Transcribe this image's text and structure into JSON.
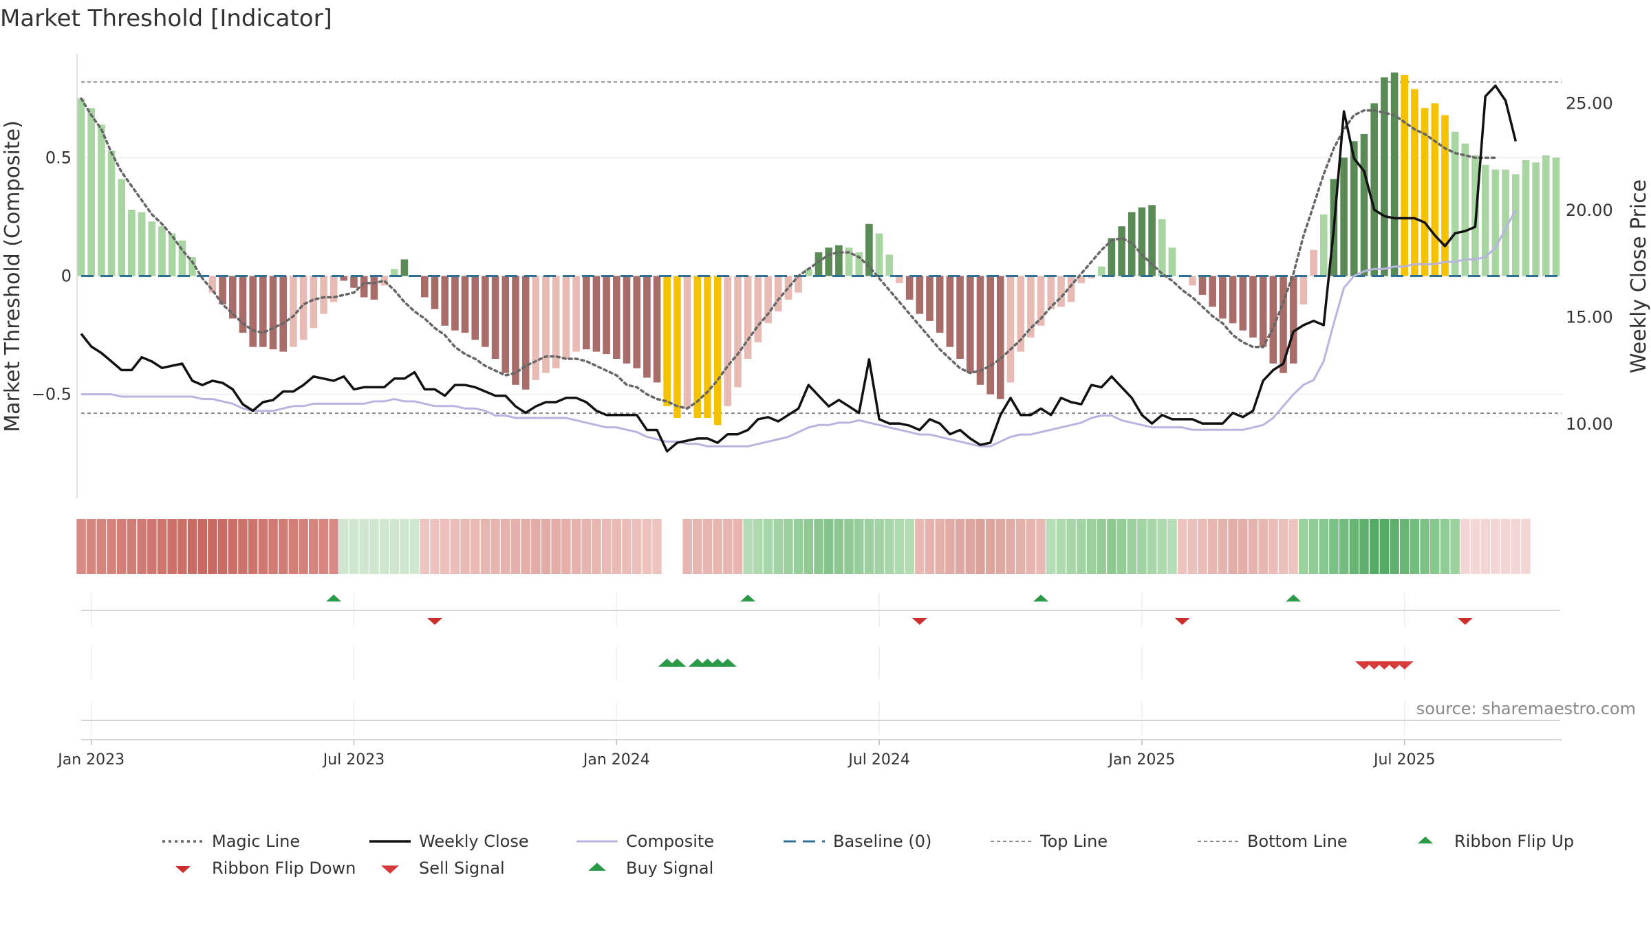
{
  "title": "Market Threshold [Indicator]",
  "source": "source: sharemaestro.com",
  "colors": {
    "pos_light": "#a8d5a2",
    "pos_dark": "#5a8a55",
    "neg_light": "#e8bab4",
    "neg_dark": "#a86d69",
    "extreme": "#f5c200",
    "magic": "#666666",
    "close": "#111111",
    "composite": "#b8b4e0",
    "baseline": "#2e6f96",
    "guide": "#888888",
    "buy": "#2a9a49",
    "sell": "#d63a3a",
    "flip_down": "#cc2d2d"
  },
  "chart_data": {
    "type": "bar+line",
    "title": "Market Threshold [Indicator]",
    "y_left_label": "Market Threshold (Composite)",
    "y_right_label": "Weekly Close Price",
    "y_left_ticks": [
      "0.5",
      "0",
      "−0.5"
    ],
    "y_left_tick_values": [
      0.5,
      0,
      -0.5
    ],
    "y_right_ticks": [
      "25.00",
      "20.00",
      "15.00",
      "10.00"
    ],
    "y_right_tick_values": [
      25,
      20,
      15,
      10
    ],
    "ylim_left": [
      -0.94,
      0.94
    ],
    "ylim_right": [
      6.5,
      27.3
    ],
    "top_line": 0.82,
    "bottom_line": -0.58,
    "x_ticks": [
      "Jan 2023",
      "Jul 2023",
      "Jan 2024",
      "Jul 2024",
      "Jan 2025",
      "Jul 2025"
    ],
    "x_tick_weeks": [
      1,
      27,
      53,
      79,
      105,
      131
    ],
    "composite_bars": [
      0.75,
      0.71,
      0.64,
      0.53,
      0.41,
      0.28,
      0.27,
      0.23,
      0.21,
      0.18,
      0.15,
      0.08,
      0,
      -0.07,
      -0.12,
      -0.18,
      -0.24,
      -0.3,
      -0.3,
      -0.31,
      -0.32,
      -0.3,
      -0.27,
      -0.22,
      -0.16,
      -0.11,
      -0.02,
      -0.05,
      -0.09,
      -0.1,
      -0.04,
      0.03,
      0.07,
      0,
      -0.09,
      -0.14,
      -0.21,
      -0.23,
      -0.24,
      -0.27,
      -0.3,
      -0.35,
      -0.41,
      -0.46,
      -0.48,
      -0.44,
      -0.41,
      -0.39,
      -0.35,
      -0.32,
      -0.31,
      -0.32,
      -0.33,
      -0.35,
      -0.37,
      -0.39,
      -0.43,
      -0.45,
      -0.55,
      -0.6,
      -0.56,
      -0.6,
      -0.6,
      -0.63,
      -0.55,
      -0.47,
      -0.35,
      -0.28,
      -0.2,
      -0.15,
      -0.1,
      -0.07,
      0.03,
      0.1,
      0.12,
      0.13,
      0.12,
      0.1,
      0.22,
      0.18,
      0.09,
      -0.03,
      -0.1,
      -0.16,
      -0.19,
      -0.24,
      -0.3,
      -0.35,
      -0.41,
      -0.46,
      -0.5,
      -0.52,
      -0.45,
      -0.32,
      -0.26,
      -0.21,
      -0.14,
      -0.13,
      -0.11,
      -0.03,
      -0.01,
      0.04,
      0.16,
      0.21,
      0.27,
      0.29,
      0.3,
      0.24,
      0.12,
      0,
      -0.04,
      -0.08,
      -0.13,
      -0.18,
      -0.2,
      -0.23,
      -0.26,
      -0.3,
      -0.37,
      -0.41,
      -0.37,
      -0.12,
      0.11,
      0.26,
      0.41,
      0.5,
      0.57,
      0.6,
      0.73,
      0.84,
      0.86,
      0.85,
      0.79,
      0.71,
      0.73,
      0.68,
      0.61,
      0.56,
      0.51,
      0.47,
      0.45,
      0.45,
      0.43,
      0.49,
      0.48,
      0.51,
      0.5
    ],
    "bar_color_keys": [
      "pos_light",
      "pos_light",
      "pos_light",
      "pos_light",
      "pos_light",
      "pos_light",
      "pos_light",
      "pos_light",
      "pos_light",
      "pos_light",
      "pos_light",
      "pos_light",
      "neg_light",
      "neg_light",
      "neg_dark",
      "neg_dark",
      "neg_dark",
      "neg_dark",
      "neg_dark",
      "neg_dark",
      "neg_dark",
      "neg_light",
      "neg_light",
      "neg_light",
      "neg_light",
      "neg_light",
      "neg_dark",
      "neg_dark",
      "neg_dark",
      "neg_dark",
      "neg_light",
      "pos_light",
      "pos_dark",
      "neg_light",
      "neg_dark",
      "neg_dark",
      "neg_dark",
      "neg_dark",
      "neg_dark",
      "neg_dark",
      "neg_dark",
      "neg_dark",
      "neg_dark",
      "neg_dark",
      "neg_dark",
      "neg_light",
      "neg_light",
      "neg_light",
      "neg_light",
      "neg_light",
      "neg_dark",
      "neg_dark",
      "neg_dark",
      "neg_dark",
      "neg_dark",
      "neg_dark",
      "neg_dark",
      "neg_dark",
      "extreme",
      "extreme",
      "neg_light",
      "extreme",
      "extreme",
      "extreme",
      "neg_light",
      "neg_light",
      "neg_light",
      "neg_light",
      "neg_light",
      "neg_light",
      "neg_light",
      "neg_light",
      "pos_light",
      "pos_dark",
      "pos_dark",
      "pos_dark",
      "pos_light",
      "pos_light",
      "pos_dark",
      "pos_light",
      "pos_light",
      "neg_light",
      "neg_dark",
      "neg_dark",
      "neg_dark",
      "neg_dark",
      "neg_dark",
      "neg_dark",
      "neg_dark",
      "neg_dark",
      "neg_dark",
      "neg_dark",
      "neg_light",
      "neg_light",
      "neg_light",
      "neg_light",
      "neg_light",
      "neg_light",
      "neg_light",
      "neg_light",
      "neg_light",
      "pos_light",
      "pos_dark",
      "pos_dark",
      "pos_dark",
      "pos_dark",
      "pos_dark",
      "pos_light",
      "pos_light",
      "neg_light",
      "neg_light",
      "neg_dark",
      "neg_dark",
      "neg_dark",
      "neg_dark",
      "neg_dark",
      "neg_dark",
      "neg_dark",
      "neg_dark",
      "neg_dark",
      "neg_dark",
      "neg_light",
      "neg_light",
      "pos_light",
      "pos_dark",
      "pos_dark",
      "pos_dark",
      "pos_dark",
      "pos_dark",
      "pos_dark",
      "pos_dark",
      "extreme",
      "extreme",
      "extreme",
      "extreme",
      "extreme",
      "pos_light",
      "pos_light",
      "pos_light",
      "pos_light",
      "pos_light",
      "pos_light",
      "pos_light",
      "pos_light",
      "pos_light",
      "pos_light",
      "pos_light",
      "pos_dark",
      "pos_dark",
      "pos_light"
    ],
    "magic_line": [
      0.75,
      0.68,
      0.62,
      0.52,
      0.44,
      0.38,
      0.32,
      0.26,
      0.22,
      0.17,
      0.11,
      0.06,
      -0.01,
      -0.06,
      -0.12,
      -0.16,
      -0.2,
      -0.23,
      -0.24,
      -0.22,
      -0.2,
      -0.17,
      -0.12,
      -0.1,
      -0.09,
      -0.09,
      -0.08,
      -0.07,
      -0.03,
      -0.03,
      -0.02,
      -0.06,
      -0.11,
      -0.15,
      -0.18,
      -0.22,
      -0.25,
      -0.3,
      -0.33,
      -0.35,
      -0.38,
      -0.4,
      -0.42,
      -0.41,
      -0.38,
      -0.36,
      -0.34,
      -0.34,
      -0.35,
      -0.35,
      -0.36,
      -0.38,
      -0.4,
      -0.42,
      -0.46,
      -0.47,
      -0.5,
      -0.52,
      -0.53,
      -0.55,
      -0.56,
      -0.53,
      -0.49,
      -0.44,
      -0.38,
      -0.33,
      -0.27,
      -0.21,
      -0.16,
      -0.1,
      -0.05,
      0,
      0.03,
      0.06,
      0.09,
      0.1,
      0.1,
      0.08,
      0.04,
      -0.01,
      -0.06,
      -0.11,
      -0.16,
      -0.21,
      -0.26,
      -0.31,
      -0.35,
      -0.39,
      -0.41,
      -0.4,
      -0.38,
      -0.35,
      -0.31,
      -0.27,
      -0.22,
      -0.18,
      -0.13,
      -0.09,
      -0.04,
      0.01,
      0.06,
      0.11,
      0.15,
      0.16,
      0.14,
      0.09,
      0.05,
      0.01,
      -0.02,
      -0.06,
      -0.09,
      -0.13,
      -0.17,
      -0.2,
      -0.25,
      -0.28,
      -0.3,
      -0.3,
      -0.22,
      -0.11,
      0.01,
      0.17,
      0.3,
      0.43,
      0.54,
      0.62,
      0.68,
      0.7,
      0.7,
      0.69,
      0.68,
      0.65,
      0.62,
      0.6,
      0.57,
      0.54,
      0.52,
      0.51,
      0.5,
      0.5,
      0.5
    ],
    "weekly_close": [
      14.2,
      13.6,
      13.3,
      12.9,
      12.5,
      12.5,
      13.1,
      12.9,
      12.6,
      12.7,
      12.8,
      12.0,
      11.8,
      12.0,
      11.9,
      11.6,
      10.9,
      10.6,
      11.0,
      11.1,
      11.5,
      11.5,
      11.8,
      12.2,
      12.1,
      12.0,
      12.2,
      11.6,
      11.7,
      11.7,
      11.7,
      12.1,
      12.1,
      12.4,
      11.6,
      11.6,
      11.3,
      11.8,
      11.8,
      11.7,
      11.5,
      11.3,
      11.3,
      10.8,
      10.5,
      10.8,
      11.0,
      11.0,
      11.2,
      11.2,
      11.0,
      10.6,
      10.4,
      10.4,
      10.4,
      10.4,
      9.7,
      9.7,
      8.7,
      9.1,
      9.2,
      9.3,
      9.3,
      9.1,
      9.5,
      9.5,
      9.7,
      10.2,
      10.3,
      10.1,
      10.4,
      10.7,
      11.8,
      11.3,
      10.8,
      11.1,
      10.8,
      10.5,
      13.0,
      10.2,
      10.0,
      10.0,
      9.9,
      9.7,
      10.2,
      10.0,
      9.5,
      9.7,
      9.3,
      9.0,
      9.1,
      10.4,
      11.2,
      10.4,
      10.4,
      10.7,
      10.4,
      11.2,
      11.0,
      10.9,
      11.8,
      11.7,
      12.2,
      11.7,
      11.2,
      10.4,
      10.0,
      10.4,
      10.2,
      10.2,
      10.2,
      10.0,
      10.0,
      10.0,
      10.5,
      10.3,
      10.6,
      12.0,
      12.5,
      12.8,
      14.3,
      14.6,
      14.8,
      14.6,
      19.1,
      24.6,
      22.4,
      21.8,
      20.0,
      19.7,
      19.6,
      19.6,
      19.6,
      19.4,
      18.8,
      18.3,
      18.9,
      19.0,
      19.2,
      25.3,
      25.8,
      25.1,
      23.2
    ],
    "composite_line": [
      -0.5,
      -0.5,
      -0.5,
      -0.5,
      -0.51,
      -0.51,
      -0.51,
      -0.51,
      -0.51,
      -0.51,
      -0.51,
      -0.51,
      -0.52,
      -0.52,
      -0.53,
      -0.54,
      -0.56,
      -0.57,
      -0.57,
      -0.57,
      -0.56,
      -0.55,
      -0.55,
      -0.54,
      -0.54,
      -0.54,
      -0.54,
      -0.54,
      -0.54,
      -0.53,
      -0.53,
      -0.52,
      -0.53,
      -0.53,
      -0.54,
      -0.55,
      -0.55,
      -0.55,
      -0.56,
      -0.56,
      -0.57,
      -0.59,
      -0.59,
      -0.6,
      -0.6,
      -0.6,
      -0.6,
      -0.6,
      -0.6,
      -0.61,
      -0.62,
      -0.63,
      -0.64,
      -0.64,
      -0.65,
      -0.66,
      -0.68,
      -0.69,
      -0.7,
      -0.7,
      -0.71,
      -0.71,
      -0.72,
      -0.72,
      -0.72,
      -0.72,
      -0.72,
      -0.71,
      -0.7,
      -0.69,
      -0.68,
      -0.66,
      -0.64,
      -0.63,
      -0.63,
      -0.62,
      -0.62,
      -0.61,
      -0.62,
      -0.63,
      -0.64,
      -0.65,
      -0.66,
      -0.67,
      -0.67,
      -0.68,
      -0.69,
      -0.7,
      -0.71,
      -0.72,
      -0.72,
      -0.7,
      -0.68,
      -0.67,
      -0.67,
      -0.66,
      -0.65,
      -0.64,
      -0.63,
      -0.62,
      -0.6,
      -0.59,
      -0.59,
      -0.61,
      -0.62,
      -0.63,
      -0.64,
      -0.64,
      -0.64,
      -0.64,
      -0.65,
      -0.65,
      -0.65,
      -0.65,
      -0.65,
      -0.65,
      -0.64,
      -0.63,
      -0.6,
      -0.55,
      -0.5,
      -0.46,
      -0.44,
      -0.36,
      -0.2,
      -0.05,
      0.0,
      0.02,
      0.03,
      0.03,
      0.04,
      0.04,
      0.05,
      0.05,
      0.05,
      0.06,
      0.06,
      0.07,
      0.07,
      0.08,
      0.12,
      0.2,
      0.28
    ],
    "ribbon_strip": {
      "segments": [
        {
          "label": "strong bearish",
          "from_week": 0,
          "to_week": 25,
          "color_start": "#d88a84",
          "color_mid": "#c86860"
        },
        {
          "label": "bullish light",
          "from_week": 26,
          "to_week": 33,
          "color_start": "#cfe7cf"
        },
        {
          "label": "bearish light",
          "from_week": 34,
          "to_week": 57,
          "color_start": "#eec4c0",
          "color_mid": "#e2aaa4"
        },
        {
          "label": "bearish",
          "from_week": 60,
          "to_week": 65,
          "color_start": "#e8b6b0"
        },
        {
          "label": "bullish",
          "from_week": 66,
          "to_week": 82,
          "color_start": "#b2dcb4",
          "color_mid": "#86c38c"
        },
        {
          "label": "bearish",
          "from_week": 83,
          "to_week": 95,
          "color_start": "#e8b8b2",
          "color_mid": "#dca09a"
        },
        {
          "label": "bullish",
          "from_week": 96,
          "to_week": 108,
          "color_start": "#b5ddb6",
          "color_mid": "#8ec990"
        },
        {
          "label": "bearish",
          "from_week": 109,
          "to_week": 120,
          "color_start": "#eec4c0",
          "color_mid": "#e2aca6"
        },
        {
          "label": "strong bullish",
          "from_week": 121,
          "to_week": 136,
          "color_start": "#9ad29e",
          "color_mid": "#4fa860"
        },
        {
          "label": "bearish light",
          "from_week": 137,
          "to_week": 143,
          "color_start": "#f3d6d3"
        }
      ]
    },
    "ribbon_flip_up_weeks": [
      25,
      66,
      95,
      120
    ],
    "ribbon_flip_down_weeks": [
      35,
      83,
      109,
      137
    ],
    "buy_signal_weeks": [
      58,
      59,
      61,
      62,
      63,
      64
    ],
    "sell_signal_weeks": [
      127,
      128,
      129,
      130,
      131
    ],
    "legend": [
      {
        "key": "magic",
        "label": "Magic Line",
        "marker": "dotted-line"
      },
      {
        "key": "close",
        "label": "Weekly Close",
        "marker": "solid-line"
      },
      {
        "key": "composite",
        "label": "Composite",
        "marker": "solid-line"
      },
      {
        "key": "baseline",
        "label": "Baseline (0)",
        "marker": "dashed-line"
      },
      {
        "key": "top",
        "label": "Top Line",
        "marker": "dotted-line"
      },
      {
        "key": "bottom",
        "label": "Bottom Line",
        "marker": "dotted-line"
      },
      {
        "key": "flip_up",
        "label": "Ribbon Flip Up",
        "marker": "triangle-up"
      },
      {
        "key": "flip_down",
        "label": "Ribbon Flip Down",
        "marker": "triangle-down"
      },
      {
        "key": "sell",
        "label": "Sell Signal",
        "marker": "triangle-down"
      },
      {
        "key": "buy",
        "label": "Buy Signal",
        "marker": "triangle-up"
      }
    ]
  }
}
